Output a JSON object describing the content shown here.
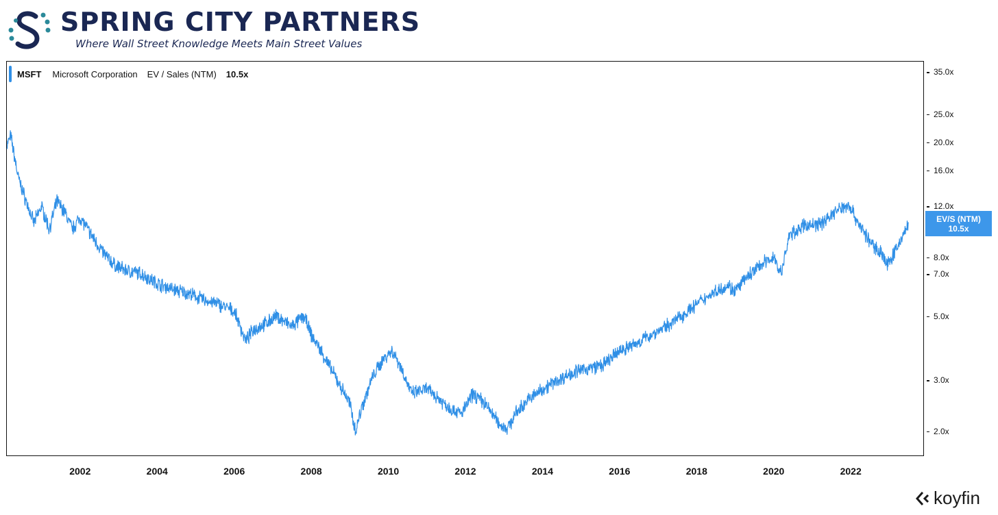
{
  "brand": {
    "name": "SPRING CITY PARTNERS",
    "tagline": "Where Wall Street Knowledge Meets Main Street Values",
    "colors": {
      "navy": "#1a2753",
      "teal": "#2b8a9a"
    }
  },
  "legend": {
    "ticker": "MSFT",
    "company": "Microsoft Corporation",
    "metric": "EV / Sales (NTM)",
    "value": "10.5x"
  },
  "last_value_tag": {
    "line1": "EV/S (NTM)",
    "line2": "10.5x"
  },
  "footer": {
    "provider": "koyfin"
  },
  "chart_data": {
    "type": "line",
    "title": "",
    "xlabel": "",
    "ylabel": "",
    "y_scale": "log",
    "xlim": [
      2000.1,
      2023.9
    ],
    "ylim": [
      1.65,
      38
    ],
    "grid": false,
    "line_color": "#2f8fe6",
    "y_ticks": [
      {
        "value": 2.0,
        "label": "2.0x"
      },
      {
        "value": 3.0,
        "label": "3.0x"
      },
      {
        "value": 5.0,
        "label": "5.0x"
      },
      {
        "value": 7.0,
        "label": "7.0x"
      },
      {
        "value": 8.0,
        "label": "8.0x"
      },
      {
        "value": 12.0,
        "label": "12.0x"
      },
      {
        "value": 16.0,
        "label": "16.0x"
      },
      {
        "value": 20.0,
        "label": "20.0x"
      },
      {
        "value": 25.0,
        "label": "25.0x"
      },
      {
        "value": 35.0,
        "label": "35.0x"
      }
    ],
    "x_ticks": [
      {
        "value": 2002,
        "label": "2002"
      },
      {
        "value": 2004,
        "label": "2004"
      },
      {
        "value": 2006,
        "label": "2006"
      },
      {
        "value": 2008,
        "label": "2008"
      },
      {
        "value": 2010,
        "label": "2010"
      },
      {
        "value": 2012,
        "label": "2012"
      },
      {
        "value": 2014,
        "label": "2014"
      },
      {
        "value": 2016,
        "label": "2016"
      },
      {
        "value": 2018,
        "label": "2018"
      },
      {
        "value": 2020,
        "label": "2020"
      },
      {
        "value": 2022,
        "label": "2022"
      }
    ],
    "series": [
      {
        "name": "MSFT",
        "x": [
          2000.1,
          2000.2,
          2000.4,
          2000.6,
          2000.8,
          2001.0,
          2001.2,
          2001.4,
          2001.6,
          2001.8,
          2002.0,
          2002.3,
          2002.6,
          2002.9,
          2003.2,
          2003.6,
          2004.0,
          2004.4,
          2004.8,
          2005.2,
          2005.6,
          2006.0,
          2006.3,
          2006.5,
          2006.8,
          2007.1,
          2007.5,
          2007.8,
          2007.9,
          2008.0,
          2008.2,
          2008.5,
          2008.8,
          2009.0,
          2009.15,
          2009.3,
          2009.6,
          2009.9,
          2010.1,
          2010.3,
          2010.6,
          2011.0,
          2011.3,
          2011.6,
          2011.9,
          2012.2,
          2012.5,
          2012.7,
          2012.9,
          2013.1,
          2013.3,
          2013.6,
          2014.0,
          2014.4,
          2014.8,
          2015.2,
          2015.6,
          2016.0,
          2016.4,
          2016.8,
          2017.2,
          2017.6,
          2018.0,
          2018.4,
          2018.8,
          2019.0,
          2019.3,
          2019.7,
          2020.0,
          2020.2,
          2020.4,
          2020.8,
          2021.2,
          2021.6,
          2021.95,
          2022.2,
          2022.5,
          2022.8,
          2022.95,
          2023.2,
          2023.5
        ],
        "y": [
          19.5,
          21.0,
          15.0,
          12.5,
          10.5,
          12.0,
          10.0,
          12.5,
          11.5,
          10.0,
          11.0,
          9.5,
          8.3,
          7.5,
          7.2,
          7.0,
          6.5,
          6.2,
          6.0,
          5.7,
          5.5,
          5.2,
          4.1,
          4.5,
          4.7,
          5.0,
          4.6,
          5.0,
          4.7,
          4.3,
          3.9,
          3.3,
          2.8,
          2.5,
          2.0,
          2.4,
          3.1,
          3.6,
          3.8,
          3.4,
          2.7,
          2.8,
          2.6,
          2.4,
          2.3,
          2.7,
          2.5,
          2.3,
          2.1,
          2.05,
          2.3,
          2.55,
          2.8,
          3.0,
          3.2,
          3.3,
          3.4,
          3.8,
          4.0,
          4.3,
          4.6,
          5.0,
          5.5,
          6.0,
          6.4,
          6.1,
          6.8,
          7.6,
          8.0,
          7.0,
          9.5,
          10.3,
          10.4,
          11.5,
          12.2,
          10.5,
          9.0,
          8.3,
          7.5,
          8.6,
          10.5
        ]
      }
    ]
  }
}
